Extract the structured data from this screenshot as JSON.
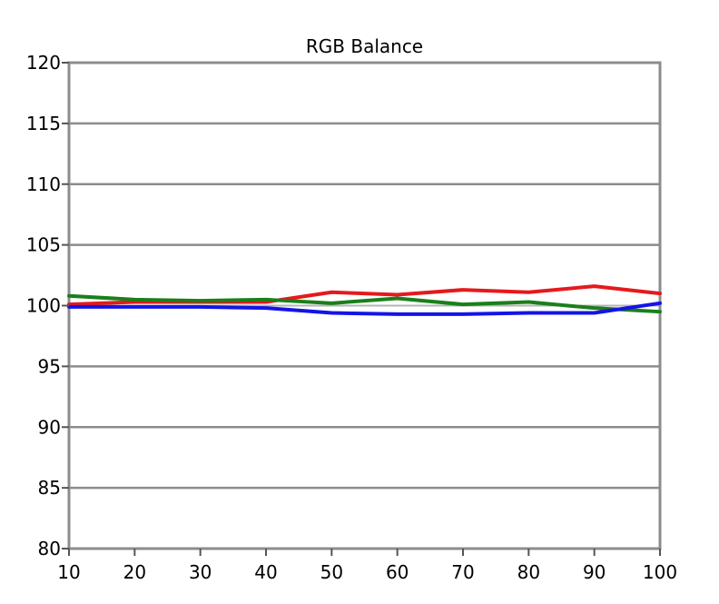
{
  "chart_data": {
    "type": "line",
    "title": "RGB Balance",
    "xlabel": "",
    "ylabel": "",
    "x": [
      10,
      20,
      30,
      40,
      50,
      60,
      70,
      80,
      90,
      100
    ],
    "xlim": [
      10,
      100
    ],
    "ylim": [
      80,
      120
    ],
    "yticks": [
      80,
      85,
      90,
      95,
      100,
      105,
      110,
      115,
      120
    ],
    "xticks": [
      10,
      20,
      30,
      40,
      50,
      60,
      70,
      80,
      90,
      100
    ],
    "grid": true,
    "reference_line": 100,
    "series": [
      {
        "color": "#e41a1c",
        "values": [
          100.1,
          100.3,
          100.3,
          100.3,
          101.1,
          100.9,
          101.3,
          101.1,
          101.6,
          101.0
        ]
      },
      {
        "color": "#1a7f1a",
        "values": [
          100.8,
          100.5,
          100.4,
          100.5,
          100.2,
          100.6,
          100.1,
          100.3,
          99.8,
          99.5
        ]
      },
      {
        "color": "#1414e6",
        "values": [
          99.9,
          99.9,
          99.9,
          99.8,
          99.4,
          99.3,
          99.3,
          99.4,
          99.4,
          100.2
        ]
      }
    ]
  }
}
